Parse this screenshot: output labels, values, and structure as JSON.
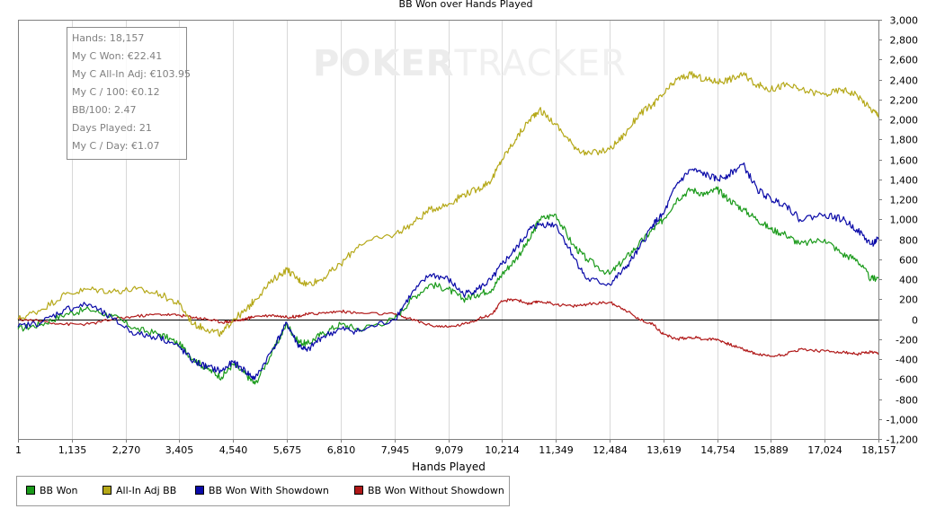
{
  "watermark": {
    "part1": "POKER",
    "part2": "TRACKER"
  },
  "info": {
    "lines": [
      "Hands: 18,157",
      "My C Won: €22.41",
      "My C All-In Adj: €103.95",
      "My C / 100: €0.12",
      "BB/100: 2.47",
      "Days Played: 21",
      "My C / Day: €1.07"
    ]
  },
  "chart_data": {
    "type": "line",
    "title": "BB Won over Hands Played",
    "xlabel": "Hands Played",
    "ylabel": "",
    "xlim": [
      1,
      18157
    ],
    "ylim": [
      -1200,
      3000
    ],
    "x_ticks": [
      1,
      1135,
      2270,
      3405,
      4540,
      5675,
      6810,
      7945,
      9079,
      10214,
      11349,
      12484,
      13619,
      14754,
      15889,
      17024,
      18157
    ],
    "x_tick_labels": [
      "1",
      "1,135",
      "2,270",
      "3,405",
      "4,540",
      "5,675",
      "6,810",
      "7,945",
      "9,079",
      "10,214",
      "11,349",
      "12,484",
      "13,619",
      "14,754",
      "15,889",
      "17,024",
      "18,157"
    ],
    "y_ticks": [
      -1200,
      -1000,
      -800,
      -600,
      -400,
      -200,
      0,
      200,
      400,
      600,
      800,
      1000,
      1200,
      1400,
      1600,
      1800,
      2000,
      2200,
      2400,
      2600,
      2800,
      3000
    ],
    "y_tick_labels": [
      "-1,200",
      "-1,000",
      "-800",
      "-600",
      "-400",
      "-200",
      "0",
      "200",
      "400",
      "600",
      "800",
      "1,000",
      "1,200",
      "1,400",
      "1,600",
      "1,800",
      "2,000",
      "2,200",
      "2,400",
      "2,600",
      "2,800",
      "3,000"
    ],
    "grid": "vertical",
    "legend_position": "bottom-left",
    "series": [
      {
        "name": "BB Won",
        "color": "#1a9a1a",
        "x": [
          1,
          500,
          1000,
          1500,
          2000,
          2500,
          3000,
          3405,
          3700,
          4000,
          4300,
          4540,
          4800,
          5000,
          5400,
          5675,
          5900,
          6100,
          6400,
          6810,
          7200,
          7945,
          8300,
          8700,
          9079,
          9400,
          9700,
          10000,
          10214,
          10500,
          10800,
          11000,
          11349,
          11700,
          12000,
          12484,
          12800,
          13100,
          13400,
          13619,
          13900,
          14200,
          14500,
          14754,
          15000,
          15300,
          15600,
          15889,
          16200,
          16500,
          17024,
          17400,
          17700,
          18000,
          18157
        ],
        "y": [
          -100,
          -50,
          50,
          100,
          30,
          -100,
          -150,
          -250,
          -400,
          -500,
          -580,
          -450,
          -550,
          -650,
          -300,
          -50,
          -220,
          -250,
          -150,
          -50,
          -100,
          0,
          200,
          350,
          300,
          200,
          250,
          300,
          450,
          600,
          800,
          1000,
          1050,
          750,
          600,
          450,
          600,
          750,
          900,
          1000,
          1200,
          1300,
          1250,
          1300,
          1200,
          1100,
          1000,
          900,
          850,
          750,
          800,
          650,
          600,
          400,
          420
        ]
      },
      {
        "name": "All-In Adj BB",
        "color": "#b5a818",
        "x": [
          1,
          500,
          1000,
          1500,
          2000,
          2500,
          3000,
          3405,
          3700,
          4000,
          4300,
          4540,
          4800,
          5000,
          5400,
          5675,
          5900,
          6100,
          6400,
          6810,
          7200,
          7945,
          8300,
          8700,
          9079,
          9400,
          9700,
          10000,
          10214,
          10500,
          10800,
          11000,
          11349,
          11700,
          12000,
          12484,
          12800,
          13100,
          13400,
          13619,
          13900,
          14200,
          14500,
          14754,
          15000,
          15300,
          15600,
          15889,
          16200,
          16500,
          17024,
          17400,
          17700,
          18000,
          18157
        ],
        "y": [
          0,
          100,
          250,
          300,
          280,
          300,
          250,
          150,
          -50,
          -100,
          -150,
          0,
          80,
          200,
          400,
          500,
          400,
          350,
          400,
          550,
          750,
          850,
          950,
          1100,
          1150,
          1250,
          1300,
          1400,
          1600,
          1800,
          2000,
          2100,
          1950,
          1750,
          1650,
          1700,
          1850,
          2050,
          2150,
          2250,
          2400,
          2450,
          2400,
          2380,
          2400,
          2450,
          2350,
          2300,
          2350,
          2300,
          2250,
          2300,
          2250,
          2100,
          2050
        ]
      },
      {
        "name": "BB Won With Showdown",
        "color": "#0a0aa8",
        "x": [
          1,
          500,
          1000,
          1500,
          2000,
          2500,
          3000,
          3405,
          3700,
          4000,
          4300,
          4540,
          4800,
          5000,
          5400,
          5675,
          5900,
          6100,
          6400,
          6810,
          7200,
          7945,
          8300,
          8700,
          9079,
          9400,
          9700,
          10000,
          10214,
          10500,
          10800,
          11000,
          11349,
          11700,
          12000,
          12484,
          12800,
          13100,
          13400,
          13619,
          13900,
          14200,
          14500,
          14754,
          15000,
          15300,
          15600,
          15889,
          16200,
          16500,
          17024,
          17400,
          17700,
          18000,
          18157
        ],
        "y": [
          -80,
          -30,
          100,
          150,
          0,
          -150,
          -180,
          -280,
          -420,
          -480,
          -520,
          -430,
          -520,
          -600,
          -280,
          -40,
          -250,
          -320,
          -180,
          -100,
          -120,
          0,
          250,
          450,
          400,
          250,
          300,
          400,
          550,
          700,
          900,
          950,
          950,
          650,
          400,
          350,
          500,
          700,
          950,
          1050,
          1350,
          1500,
          1450,
          1400,
          1450,
          1550,
          1300,
          1200,
          1150,
          1000,
          1050,
          1000,
          900,
          750,
          800
        ]
      },
      {
        "name": "BB Won Without Showdown",
        "color": "#b01818",
        "x": [
          1,
          500,
          1000,
          1500,
          2000,
          2500,
          3000,
          3405,
          3700,
          4000,
          4300,
          4540,
          4800,
          5000,
          5400,
          5675,
          5900,
          6100,
          6400,
          6810,
          7200,
          7945,
          8300,
          8700,
          9079,
          9400,
          9700,
          10000,
          10214,
          10500,
          10800,
          11000,
          11349,
          11700,
          12000,
          12484,
          12800,
          13100,
          13400,
          13619,
          13900,
          14200,
          14500,
          14754,
          15000,
          15300,
          15600,
          15889,
          16200,
          16500,
          17024,
          17400,
          17700,
          18000,
          18157
        ],
        "y": [
          0,
          -20,
          -50,
          -50,
          0,
          30,
          50,
          40,
          20,
          0,
          -30,
          -20,
          0,
          30,
          40,
          20,
          30,
          50,
          60,
          80,
          60,
          50,
          0,
          -60,
          -80,
          -50,
          0,
          50,
          180,
          200,
          150,
          180,
          150,
          130,
          150,
          170,
          100,
          0,
          -50,
          -150,
          -200,
          -180,
          -200,
          -200,
          -250,
          -300,
          -350,
          -370,
          -350,
          -300,
          -320,
          -330,
          -350,
          -330,
          -350
        ]
      }
    ]
  }
}
